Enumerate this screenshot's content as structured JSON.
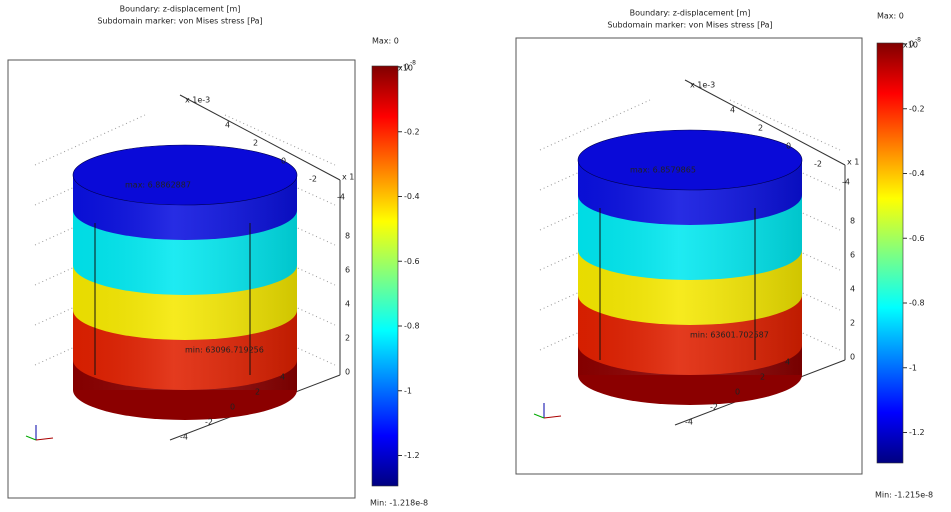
{
  "panels": [
    {
      "title": "Boundary: z-displacement [m]",
      "subtitle": "Subdomain marker: von Mises stress [Pa]",
      "max_label": "Max: 0",
      "min_label": "Min: -1.218e-8",
      "colorbar_scale": "x10",
      "colorbar_exponent": "-8",
      "colorbar_ticks": [
        "0",
        "-0.2",
        "-0.4",
        "-0.6",
        "-0.8",
        "-1",
        "-1.2"
      ],
      "axis_scale_label": "x 1e-3",
      "z_scale_label": "x 1",
      "x_ticks": [
        "-4",
        "-2",
        "0",
        "2",
        "4"
      ],
      "y_ticks": [
        "4",
        "2",
        "0",
        "-2",
        "-4"
      ],
      "z_ticks": [
        "0",
        "2",
        "4",
        "6",
        "8"
      ],
      "max_marker": "max: 6.8862887",
      "min_marker": "min: 63096.719256"
    },
    {
      "title": "Boundary: z-displacement [m]",
      "subtitle": "Subdomain marker: von Mises stress [Pa]",
      "max_label": "Max: 0",
      "min_label": "Min: -1.215e-8",
      "colorbar_scale": "x10",
      "colorbar_exponent": "-8",
      "colorbar_ticks": [
        "0",
        "-0.2",
        "-0.4",
        "-0.6",
        "-0.8",
        "-1",
        "-1.2"
      ],
      "axis_scale_label": "x 1e-3",
      "z_scale_label": "x 1",
      "x_ticks": [
        "-4",
        "-2",
        "0",
        "2",
        "4"
      ],
      "y_ticks": [
        "4",
        "2",
        "0",
        "-2",
        "-4"
      ],
      "z_ticks": [
        "0",
        "2",
        "4",
        "6",
        "8"
      ],
      "max_marker": "max: 6.8579865",
      "min_marker": "min: 63601.702587"
    }
  ]
}
